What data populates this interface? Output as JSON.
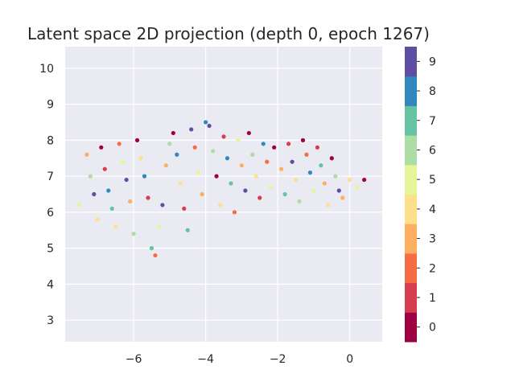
{
  "chart_data": {
    "type": "scatter",
    "title": "Latent space 2D projection (depth 0, epoch 1267)",
    "xlabel": "",
    "ylabel": "",
    "xlim": [
      -7.9,
      0.9
    ],
    "ylim": [
      2.4,
      10.6
    ],
    "x_ticks": [
      -6,
      -4,
      -2,
      0
    ],
    "y_ticks": [
      3,
      4,
      5,
      6,
      7,
      8,
      9,
      10
    ],
    "x_tick_labels": [
      "−6",
      "−4",
      "−2",
      "0"
    ],
    "y_tick_labels": [
      "3",
      "4",
      "5",
      "6",
      "7",
      "8",
      "9",
      "10"
    ],
    "grid": true,
    "colorbar": {
      "type": "discrete",
      "labels": [
        "0",
        "1",
        "2",
        "3",
        "4",
        "5",
        "6",
        "7",
        "8",
        "9"
      ],
      "colors": [
        "#9e0142",
        "#d53e4f",
        "#f46d43",
        "#fdae61",
        "#fee08b",
        "#e6f598",
        "#abdda4",
        "#66c2a5",
        "#3288bd",
        "#5e4fa2"
      ]
    },
    "point_count_note": "",
    "points": [
      [
        -7.3,
        7.6,
        3
      ],
      [
        -7.2,
        7.0,
        6
      ],
      [
        -7.5,
        6.2,
        5
      ],
      [
        -7.1,
        6.5,
        9
      ],
      [
        -7.0,
        5.8,
        4
      ],
      [
        -6.9,
        7.8,
        0
      ],
      [
        -6.8,
        7.2,
        1
      ],
      [
        -6.7,
        6.6,
        8
      ],
      [
        -6.6,
        6.1,
        7
      ],
      [
        -6.5,
        5.6,
        4
      ],
      [
        -6.4,
        7.9,
        2
      ],
      [
        -6.3,
        7.4,
        5
      ],
      [
        -6.2,
        6.9,
        9
      ],
      [
        -6.1,
        6.3,
        3
      ],
      [
        -6.0,
        5.4,
        6
      ],
      [
        -5.9,
        8.0,
        0
      ],
      [
        -5.8,
        7.5,
        4
      ],
      [
        -5.7,
        7.0,
        8
      ],
      [
        -5.6,
        6.4,
        1
      ],
      [
        -5.5,
        5.0,
        7
      ],
      [
        -5.4,
        4.8,
        2
      ],
      [
        -5.3,
        5.6,
        5
      ],
      [
        -5.2,
        6.2,
        9
      ],
      [
        -5.1,
        7.3,
        3
      ],
      [
        -5.0,
        7.9,
        6
      ],
      [
        -4.9,
        8.2,
        0
      ],
      [
        -4.8,
        7.6,
        8
      ],
      [
        -4.7,
        6.8,
        4
      ],
      [
        -4.6,
        6.1,
        1
      ],
      [
        -4.5,
        5.5,
        7
      ],
      [
        -4.4,
        8.3,
        9
      ],
      [
        -4.3,
        7.8,
        2
      ],
      [
        -4.2,
        7.1,
        5
      ],
      [
        -4.1,
        6.5,
        3
      ],
      [
        -4.0,
        8.5,
        8
      ],
      [
        -3.9,
        8.4,
        9
      ],
      [
        -3.8,
        7.7,
        6
      ],
      [
        -3.7,
        7.0,
        0
      ],
      [
        -3.6,
        6.2,
        4
      ],
      [
        -3.5,
        8.1,
        1
      ],
      [
        -3.4,
        7.5,
        8
      ],
      [
        -3.3,
        6.8,
        7
      ],
      [
        -3.2,
        6.0,
        2
      ],
      [
        -3.1,
        8.0,
        5
      ],
      [
        -3.0,
        7.3,
        3
      ],
      [
        -2.9,
        6.6,
        9
      ],
      [
        -2.8,
        8.2,
        0
      ],
      [
        -2.7,
        7.6,
        6
      ],
      [
        -2.6,
        7.0,
        4
      ],
      [
        -2.5,
        6.4,
        1
      ],
      [
        -2.4,
        7.9,
        8
      ],
      [
        -2.3,
        7.4,
        2
      ],
      [
        -2.2,
        6.7,
        5
      ],
      [
        -2.1,
        7.8,
        0
      ],
      [
        -1.9,
        7.2,
        3
      ],
      [
        -1.8,
        6.5,
        7
      ],
      [
        -1.7,
        7.9,
        1
      ],
      [
        -1.6,
        7.4,
        9
      ],
      [
        -1.5,
        6.9,
        4
      ],
      [
        -1.4,
        6.3,
        6
      ],
      [
        -1.3,
        8.0,
        0
      ],
      [
        -1.2,
        7.6,
        2
      ],
      [
        -1.1,
        7.1,
        8
      ],
      [
        -1.0,
        6.6,
        5
      ],
      [
        -0.9,
        7.8,
        1
      ],
      [
        -0.8,
        7.3,
        7
      ],
      [
        -0.7,
        6.8,
        3
      ],
      [
        -0.6,
        6.2,
        4
      ],
      [
        -0.5,
        7.5,
        0
      ],
      [
        -0.4,
        7.0,
        6
      ],
      [
        -0.3,
        6.6,
        9
      ],
      [
        -0.2,
        6.4,
        3
      ],
      [
        0.0,
        6.9,
        4
      ],
      [
        0.2,
        6.7,
        5
      ],
      [
        0.4,
        6.9,
        0
      ]
    ]
  }
}
